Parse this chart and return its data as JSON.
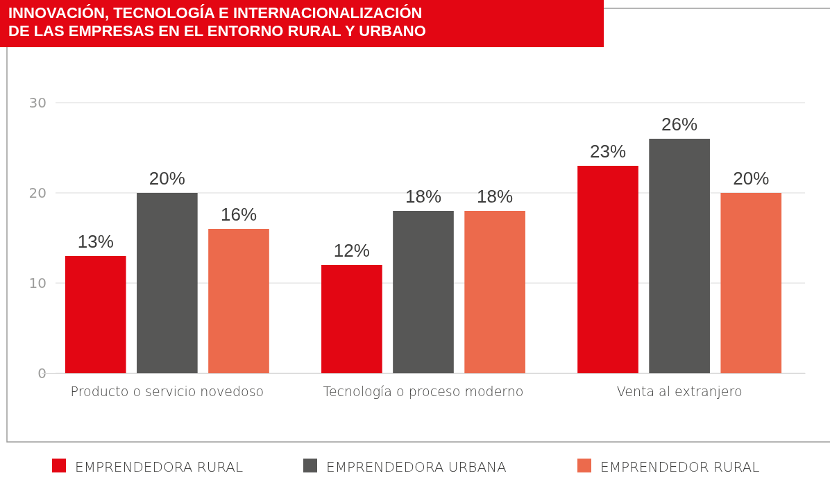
{
  "chart_data": {
    "type": "bar",
    "title": "INNOVACIÓN, TECNOLOGÍA E INTERNACIONALIZACIÓN\nDE LAS EMPRESAS EN EL ENTORNO RURAL Y URBANO",
    "categories": [
      "Producto o servicio novedoso",
      "Tecnología o proceso moderno",
      "Venta al extranjero"
    ],
    "series": [
      {
        "name": "EMPRENDEDORA RURAL",
        "color": "#e30613",
        "values": [
          13,
          12,
          23
        ],
        "value_labels": [
          "13%",
          "12%",
          "23%"
        ]
      },
      {
        "name": "EMPRENDEDORA URBANA",
        "color": "#575756",
        "values": [
          20,
          18,
          26
        ],
        "value_labels": [
          "20%",
          "18%",
          "26%"
        ]
      },
      {
        "name": "EMPRENDEDOR RURAL",
        "color": "#ec6a4c",
        "values": [
          16,
          18,
          20
        ],
        "value_labels": [
          "16%",
          "18%",
          "20%"
        ]
      }
    ],
    "ylim": [
      0,
      30
    ],
    "yticks": [
      0,
      10,
      20,
      30
    ],
    "grid": "y",
    "legend": "bottom"
  }
}
